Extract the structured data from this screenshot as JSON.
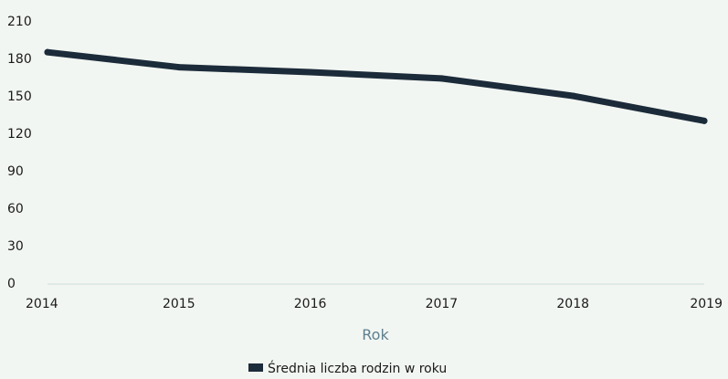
{
  "chart_data": {
    "type": "line",
    "title": "",
    "xlabel": "Rok",
    "ylabel": "",
    "x": [
      "2014",
      "2015",
      "2016",
      "2017",
      "2018",
      "2019"
    ],
    "ylim": [
      0,
      210
    ],
    "yticks": [
      "0",
      "30",
      "60",
      "90",
      "120",
      "150",
      "180",
      "210"
    ],
    "grid": false,
    "legend_position": "bottom-center",
    "series": [
      {
        "name": "Średnia liczba rodzin w roku",
        "values": [
          185,
          173,
          169,
          164,
          150,
          130
        ],
        "color": "#1c2b3a"
      }
    ]
  }
}
